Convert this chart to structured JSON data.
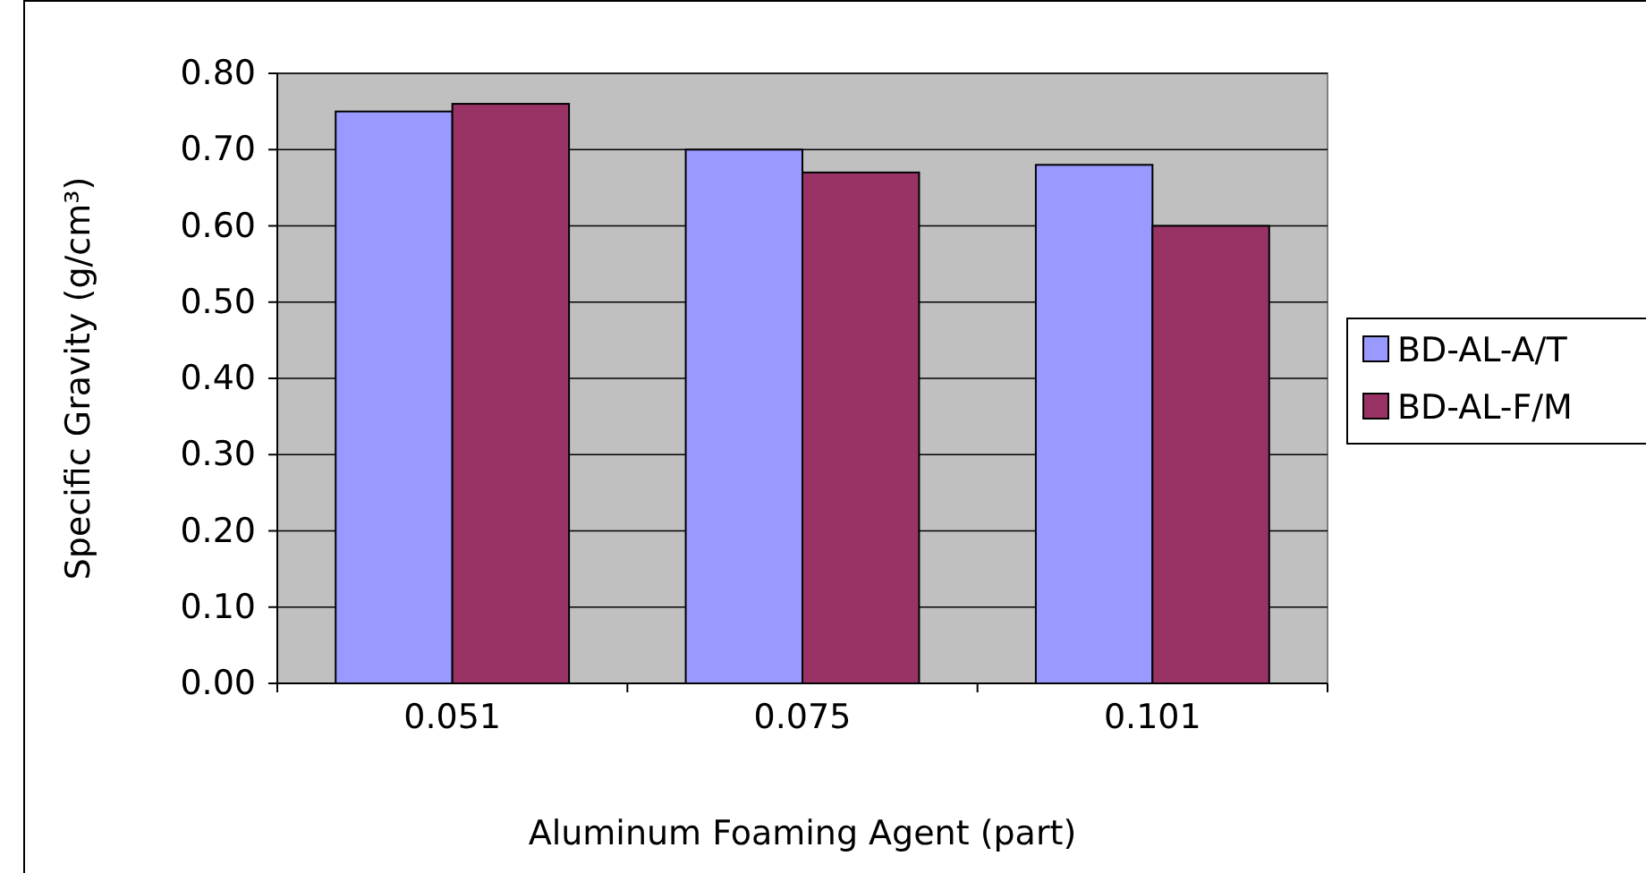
{
  "chart_data": {
    "type": "bar",
    "xlabel": "Aluminum Foaming Agent (part)",
    "ylabel": "Specific Gravity (g/cm³)",
    "categories": [
      "0.051",
      "0.075",
      "0.101"
    ],
    "series": [
      {
        "name": "BD-AL-A/T",
        "color": "#9999ff",
        "values": [
          0.75,
          0.7,
          0.68
        ]
      },
      {
        "name": "BD-AL-F/M",
        "color": "#993366",
        "values": [
          0.76,
          0.67,
          0.6
        ]
      }
    ],
    "ylim": [
      0,
      0.8
    ],
    "yticks": [
      {
        "value": 0,
        "label": "0.00"
      },
      {
        "value": 0.1,
        "label": "0.10"
      },
      {
        "value": 0.2,
        "label": "0.20"
      },
      {
        "value": 0.3,
        "label": "0.30"
      },
      {
        "value": 0.4,
        "label": "0.40"
      },
      {
        "value": 0.5,
        "label": "0.50"
      },
      {
        "value": 0.6,
        "label": "0.60"
      },
      {
        "value": 0.7,
        "label": "0.70"
      },
      {
        "value": 0.8,
        "label": "0.80"
      }
    ],
    "grid": "y",
    "legend": "right"
  }
}
